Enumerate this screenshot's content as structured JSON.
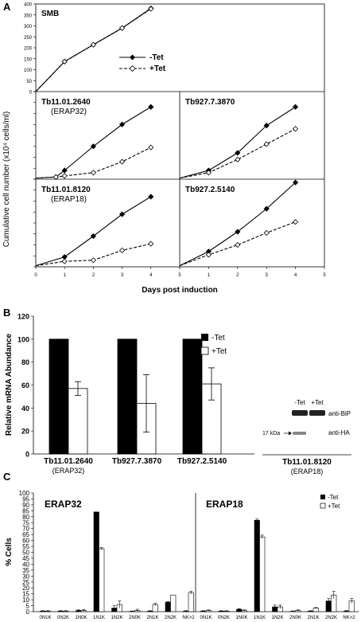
{
  "panels": {
    "A": "A",
    "B": "B",
    "C": "C"
  },
  "chart_data": [
    {
      "id": "A",
      "type": "line",
      "xlabel": "Days post induction",
      "ylabel": "Cumulative cell number (x10⁴ cells/ml)",
      "legend": {
        "minus": "-Tet",
        "plus": "+Tet"
      },
      "x_ticks": [
        0,
        1,
        2,
        3,
        4,
        5
      ],
      "subplots": [
        {
          "title": "SMB",
          "title2": "",
          "ylim": [
            0,
            400
          ],
          "yticks": [
            0,
            50,
            100,
            150,
            200,
            250,
            300,
            350,
            400
          ],
          "x": [
            0,
            1,
            2,
            3,
            4
          ],
          "series": [
            {
              "name": "-Tet",
              "values": [
                0,
                137,
                214,
                290,
                380
              ]
            },
            {
              "name": "+Tet",
              "values": [
                0,
                137,
                214,
                290,
                378
              ]
            }
          ]
        },
        {
          "title": "Tb11.01.2640",
          "title2": "(ERAP32)",
          "x": [
            0,
            0.7,
            1,
            2,
            3,
            4
          ],
          "series": [
            {
              "name": "-Tet",
              "values": [
                5,
                10,
                40,
                150,
                250,
                330
              ]
            },
            {
              "name": "+Tet",
              "values": [
                5,
                10,
                15,
                30,
                80,
                145
              ]
            }
          ]
        },
        {
          "title": "Tb927.7.3870",
          "title2": "",
          "x": [
            0,
            1,
            2,
            3,
            4
          ],
          "series": [
            {
              "name": "-Tet",
              "values": [
                5,
                40,
                120,
                245,
                330
              ]
            },
            {
              "name": "+Tet",
              "values": [
                5,
                30,
                90,
                160,
                230
              ]
            }
          ]
        },
        {
          "title": "Tb11.01.8120",
          "title2": "(ERAP18)",
          "x": [
            0,
            1,
            2,
            3,
            4
          ],
          "series": [
            {
              "name": "-Tet",
              "values": [
                5,
                45,
                140,
                240,
                320
              ]
            },
            {
              "name": "+Tet",
              "values": [
                5,
                25,
                30,
                75,
                105
              ]
            }
          ]
        },
        {
          "title": "Tb927.2.5140",
          "title2": "",
          "x": [
            0,
            1,
            2,
            3,
            4
          ],
          "series": [
            {
              "name": "-Tet",
              "values": [
                5,
                70,
                160,
                265,
                385
              ]
            },
            {
              "name": "+Tet",
              "values": [
                5,
                55,
                100,
                155,
                205
              ]
            }
          ]
        }
      ]
    },
    {
      "id": "B",
      "type": "bar",
      "ylabel": "Relative mRNA Abundance",
      "ylim": [
        0,
        120
      ],
      "yticks": [
        0,
        20,
        40,
        60,
        80,
        100,
        120
      ],
      "categories": [
        "Tb11.01.2640",
        "Tb927.7.3870",
        "Tb927.2.5140"
      ],
      "category_subs": [
        "(ERAP32)",
        "",
        ""
      ],
      "legend": [
        "-Tet",
        "+Tet"
      ],
      "series": [
        {
          "name": "-Tet",
          "values": [
            100,
            100,
            100
          ],
          "err": [
            0,
            0,
            0
          ]
        },
        {
          "name": "+Tet",
          "values": [
            57,
            44,
            61
          ],
          "err": [
            6,
            25,
            14
          ]
        }
      ]
    },
    {
      "id": "C",
      "type": "bar",
      "ylabel": "% Cells",
      "ylim": [
        0,
        100
      ],
      "yticks": [
        0,
        5,
        10,
        15,
        20,
        25,
        30,
        35,
        40,
        45,
        50,
        55,
        60,
        65,
        70,
        75,
        80,
        85,
        90,
        95,
        100
      ],
      "legend": [
        "-Tet",
        "+Tet"
      ],
      "groups": [
        {
          "title": "ERAP32",
          "categories": [
            "0N1K",
            "0N2K",
            "1N0K",
            "1N1K",
            "1N2K",
            "2N0K",
            "2N1K",
            "2N2K",
            "NK>2"
          ],
          "series": [
            {
              "name": "-Tet",
              "values": [
                0.5,
                0.5,
                1,
                84,
                3,
                0.3,
                0.5,
                8,
                0.5
              ],
              "err": [
                0.3,
                0.3,
                0.5,
                0,
                2,
                0.3,
                0.3,
                0.5,
                0.3
              ]
            },
            {
              "name": "+Tet",
              "values": [
                0.5,
                0.5,
                1,
                53,
                6,
                1,
                6,
                14,
                16
              ],
              "err": [
                0.3,
                0.3,
                0.8,
                1,
                3,
                1,
                1,
                0,
                1
              ]
            }
          ]
        },
        {
          "title": "ERAP18",
          "categories": [
            "0N1K",
            "0N2K",
            "1N0K",
            "1N1K",
            "1N2K",
            "2N0K",
            "2N1K",
            "2N2K",
            "NK>2"
          ],
          "series": [
            {
              "name": "-Tet",
              "values": [
                0.5,
                0.5,
                2,
                77,
                4,
                0.3,
                0.5,
                9,
                0.5
              ],
              "err": [
                0.3,
                0.3,
                0.5,
                1,
                1.5,
                0.3,
                0.3,
                2,
                0.5
              ]
            },
            {
              "name": "+Tet",
              "values": [
                1,
                0.5,
                1,
                63,
                4,
                1,
                3,
                14,
                9
              ],
              "err": [
                0.5,
                0.3,
                0.5,
                1.5,
                1.5,
                0.5,
                0.5,
                3,
                2
              ]
            }
          ]
        }
      ]
    }
  ],
  "blot": {
    "lane_labels": [
      "-Tet",
      "+Tet"
    ],
    "bip_label": "anti-BiP",
    "ha_label": "anti-HA",
    "marker": "17 kDa",
    "caption": "Tb11.01.8120",
    "caption2": "(ERAP18)"
  }
}
